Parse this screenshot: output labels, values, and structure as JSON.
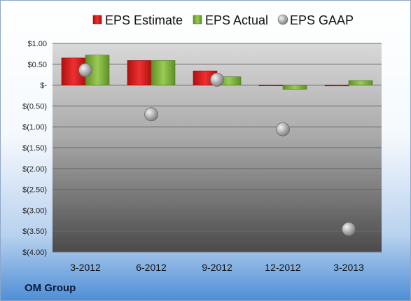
{
  "company": "OM Group",
  "chart_data": {
    "type": "bar",
    "categories": [
      "3-2012",
      "6-2012",
      "9-2012",
      "12-2012",
      "3-2013"
    ],
    "series": [
      {
        "name": "EPS Estimate",
        "kind": "bar",
        "color": "#d21f1f",
        "values": [
          0.65,
          0.59,
          0.34,
          -0.01,
          -0.02
        ]
      },
      {
        "name": "EPS Actual",
        "kind": "bar",
        "color": "#7eb13a",
        "values": [
          0.72,
          0.59,
          0.2,
          -0.1,
          0.11
        ]
      },
      {
        "name": "EPS GAAP",
        "kind": "marker",
        "color": "#a0a0a0",
        "values": [
          0.36,
          -0.7,
          0.13,
          -1.06,
          -3.45
        ]
      }
    ],
    "yticks": [
      1.0,
      0.5,
      0,
      -0.5,
      -1.0,
      -1.5,
      -2.0,
      -2.5,
      -3.0,
      -3.5,
      -4.0
    ],
    "ytick_labels": [
      "$1.00",
      "$0.50",
      "$-",
      "$(0.50)",
      "$(1.00)",
      "$(1.50)",
      "$(2.00)",
      "$(2.50)",
      "$(3.00)",
      "$(3.50)",
      "$(4.00)"
    ],
    "ylim": [
      -4.0,
      1.0
    ],
    "legend_position": "top",
    "grid": true,
    "title": "",
    "xlabel": "",
    "ylabel": ""
  }
}
